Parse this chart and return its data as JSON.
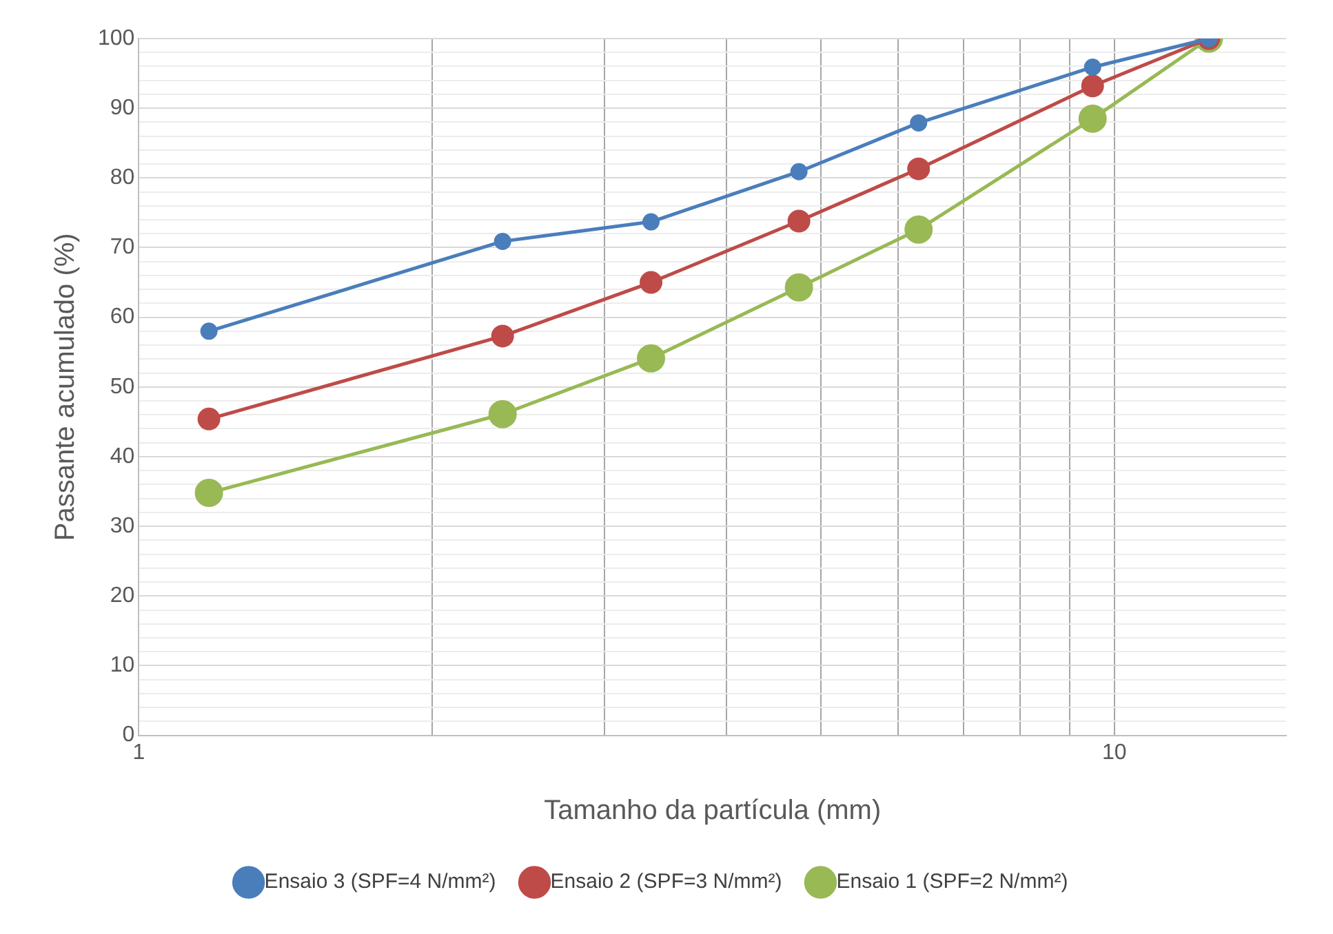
{
  "chart_data": {
    "type": "line",
    "xlabel": "Tamanho da partícula (mm)",
    "ylabel": "Passante acumulado (%)",
    "x": [
      1.18,
      2.36,
      3.35,
      4.75,
      6.3,
      9.5,
      12.5
    ],
    "series": [
      {
        "name": "Ensaio 3 (SPF=4 N/mm²)",
        "color": "#4a7ebb",
        "values": [
          58,
          70.9,
          73.7,
          80.9,
          87.9,
          95.9,
          100
        ]
      },
      {
        "name": "Ensaio 2 (SPF=3 N/mm²)",
        "color": "#be4b48",
        "values": [
          45.4,
          57.3,
          65,
          73.8,
          81.3,
          93.2,
          100
        ]
      },
      {
        "name": "Ensaio 1 (SPF=2 N/mm²)",
        "color": "#98b954",
        "values": [
          34.8,
          46.1,
          54.1,
          64.3,
          72.6,
          88.5,
          100
        ]
      }
    ],
    "log": "x",
    "xlim": [
      1,
      15
    ],
    "xticks": [
      1,
      {
        "value": 2,
        "label": null
      },
      {
        "value": 3,
        "label": null
      },
      {
        "value": 4,
        "label": null
      },
      {
        "value": 5,
        "label": null
      },
      {
        "value": 6,
        "label": null
      },
      {
        "value": 7,
        "label": null
      },
      {
        "value": 8,
        "label": null
      },
      {
        "value": 9,
        "label": null
      },
      10
    ],
    "ylim": [
      0,
      100
    ],
    "yticks": [
      0,
      {
        "value": 2,
        "label": null
      },
      {
        "value": 4,
        "label": null
      },
      {
        "value": 6,
        "label": null
      },
      {
        "value": 8,
        "label": null
      },
      10,
      {
        "value": 12,
        "label": null
      },
      {
        "value": 14,
        "label": null
      },
      {
        "value": 16,
        "label": null
      },
      {
        "value": 18,
        "label": null
      },
      20,
      {
        "value": 22,
        "label": null
      },
      {
        "value": 24,
        "label": null
      },
      {
        "value": 26,
        "label": null
      },
      {
        "value": 28,
        "label": null
      },
      30,
      {
        "value": 32,
        "label": null
      },
      {
        "value": 34,
        "label": null
      },
      {
        "value": 36,
        "label": null
      },
      {
        "value": 38,
        "label": null
      },
      40,
      {
        "value": 42,
        "label": null
      },
      {
        "value": 44,
        "label": null
      },
      {
        "value": 46,
        "label": null
      },
      {
        "value": 48,
        "label": null
      },
      50,
      {
        "value": 52,
        "label": null
      },
      {
        "value": 54,
        "label": null
      },
      {
        "value": 56,
        "label": null
      },
      {
        "value": 58,
        "label": null
      },
      60,
      {
        "value": 62,
        "label": null
      },
      {
        "value": 64,
        "label": null
      },
      {
        "value": 66,
        "label": null
      },
      {
        "value": 68,
        "label": null
      },
      70,
      {
        "value": 72,
        "label": null
      },
      {
        "value": 74,
        "label": null
      },
      {
        "value": 76,
        "label": null
      },
      {
        "value": 78,
        "label": null
      },
      80,
      {
        "value": 82,
        "label": null
      },
      {
        "value": 84,
        "label": null
      },
      {
        "value": 86,
        "label": null
      },
      {
        "value": 88,
        "label": null
      },
      90,
      {
        "value": 92,
        "label": null
      },
      {
        "value": 94,
        "label": null
      },
      {
        "value": 96,
        "label": null
      },
      {
        "value": 98,
        "label": null
      },
      100
    ],
    "grid": true,
    "legend": "bottom",
    "marker": "circle",
    "line_style": "solid"
  }
}
